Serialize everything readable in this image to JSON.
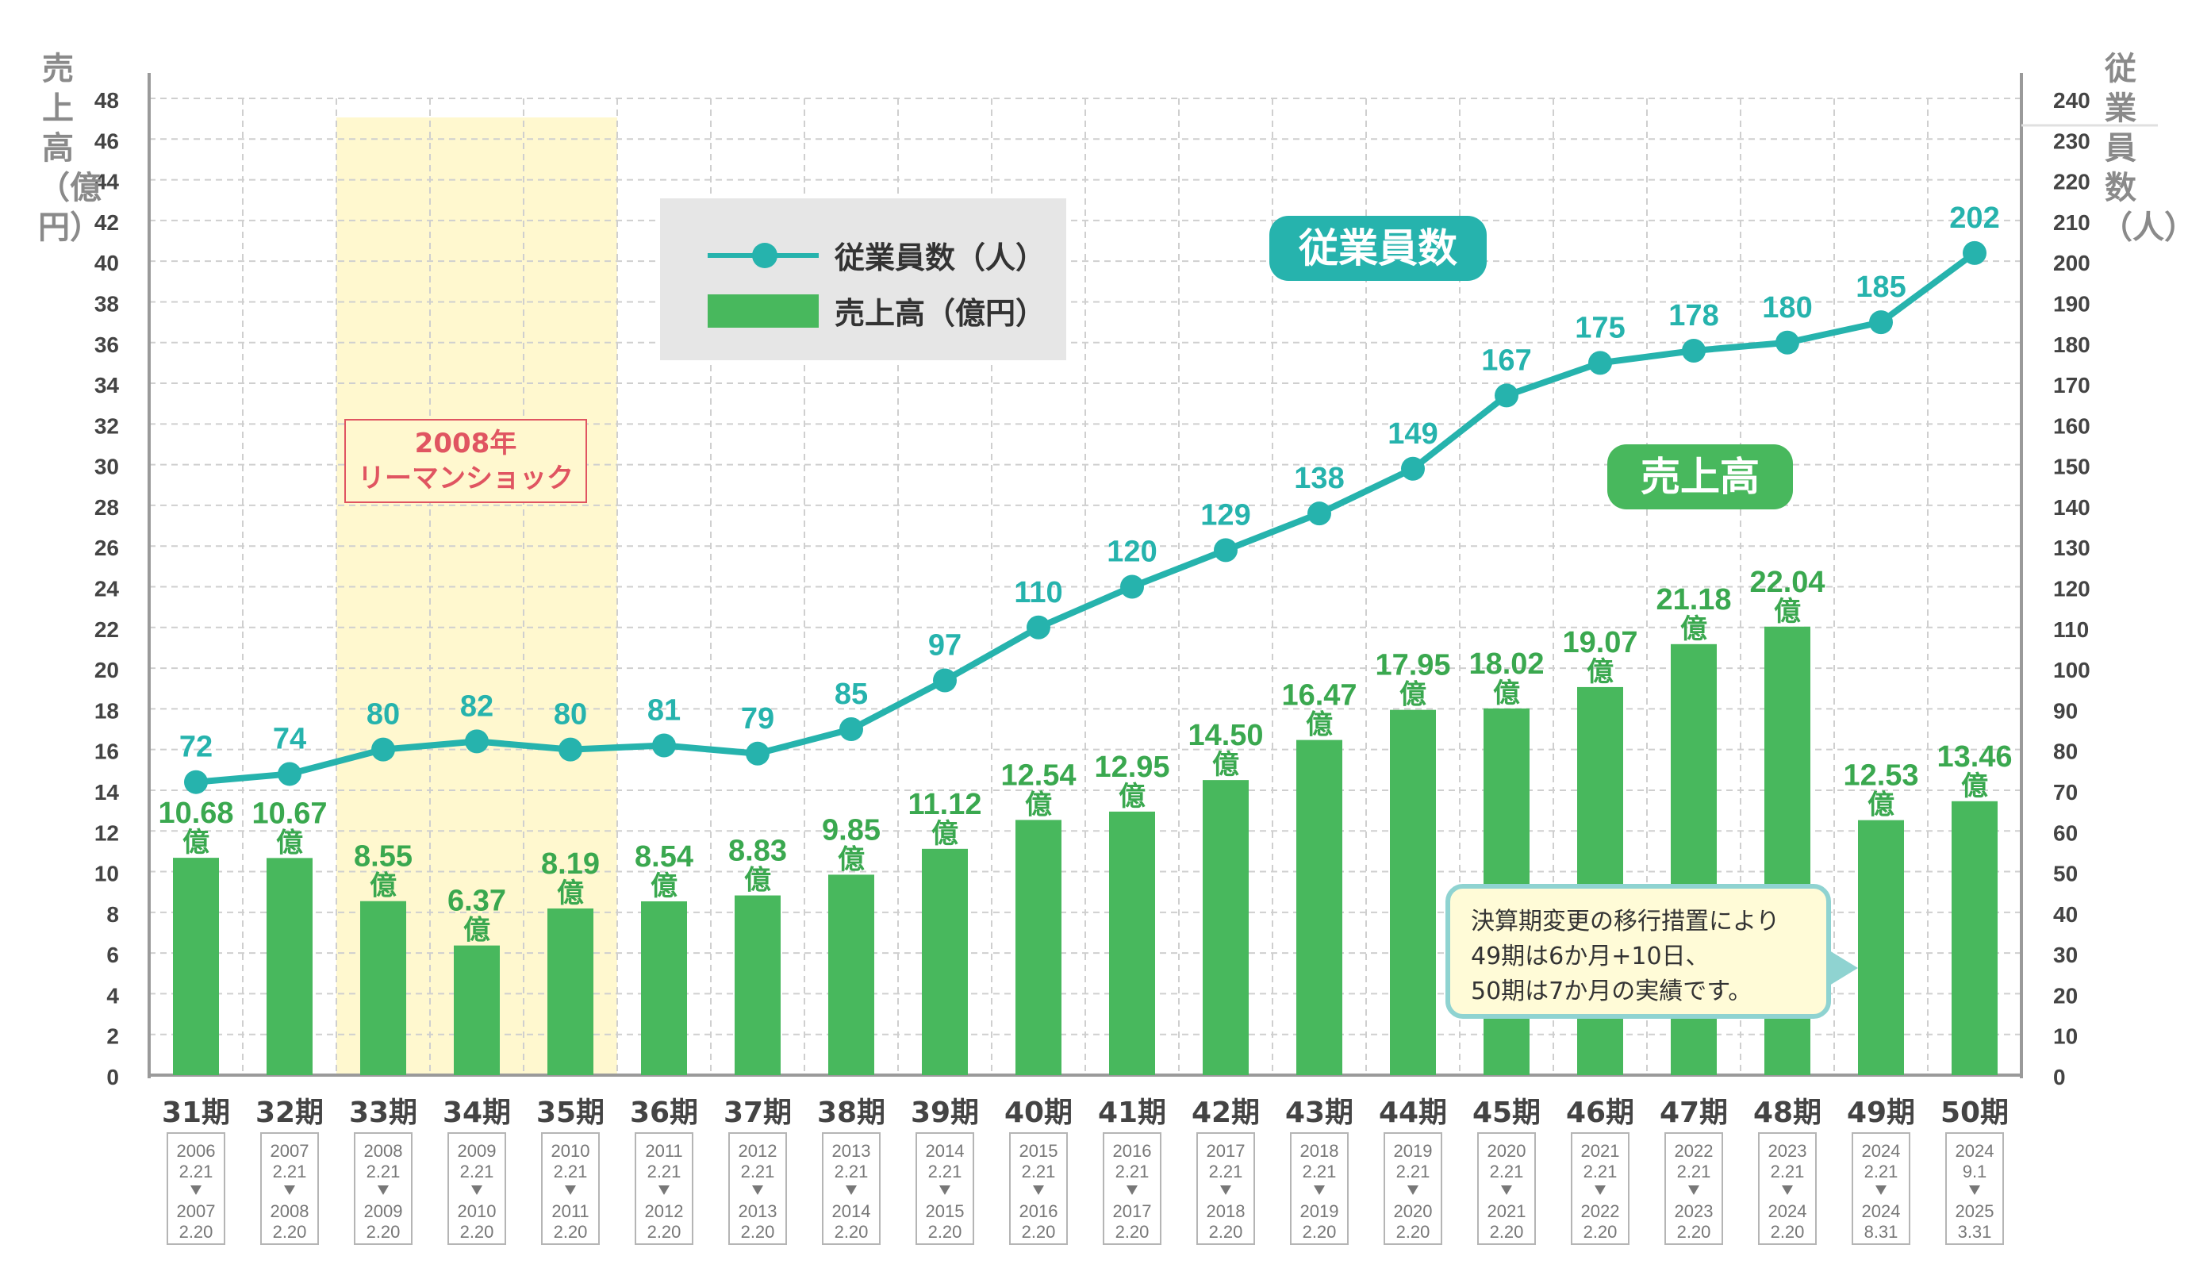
{
  "left_axis_title": "売上高（億円）",
  "right_axis_title": "従業員数（人）",
  "legend": {
    "employees": "従業員数（人）",
    "sales": "売上高（億円）"
  },
  "tags": {
    "employees": "従業員数",
    "sales": "売上高"
  },
  "lehman": {
    "line1": "2008年",
    "line2": "リーマンショック"
  },
  "note": {
    "line1": "決算期変更の移行措置により",
    "line2": "49期は6か月+10日、",
    "line3": "50期は7か月の実績です。"
  },
  "colors": {
    "bar": "#48b85d",
    "line": "#26b3ad",
    "bar_label": "#3aa84f",
    "grid": "#cfcfcf",
    "axis": "#9a9a9a",
    "highlight": "#fff8cf"
  },
  "chart_data": {
    "type": "bar",
    "categories": [
      "31期",
      "32期",
      "33期",
      "34期",
      "35期",
      "36期",
      "37期",
      "38期",
      "39期",
      "40期",
      "41期",
      "42期",
      "43期",
      "44期",
      "45期",
      "46期",
      "47期",
      "48期",
      "49期",
      "50期"
    ],
    "periods": [
      [
        "2006",
        "2.21",
        "2007",
        "2.20"
      ],
      [
        "2007",
        "2.21",
        "2008",
        "2.20"
      ],
      [
        "2008",
        "2.21",
        "2009",
        "2.20"
      ],
      [
        "2009",
        "2.21",
        "2010",
        "2.20"
      ],
      [
        "2010",
        "2.21",
        "2011",
        "2.20"
      ],
      [
        "2011",
        "2.21",
        "2012",
        "2.20"
      ],
      [
        "2012",
        "2.21",
        "2013",
        "2.20"
      ],
      [
        "2013",
        "2.21",
        "2014",
        "2.20"
      ],
      [
        "2014",
        "2.21",
        "2015",
        "2.20"
      ],
      [
        "2015",
        "2.21",
        "2016",
        "2.20"
      ],
      [
        "2016",
        "2.21",
        "2017",
        "2.20"
      ],
      [
        "2017",
        "2.21",
        "2018",
        "2.20"
      ],
      [
        "2018",
        "2.21",
        "2019",
        "2.20"
      ],
      [
        "2019",
        "2.21",
        "2020",
        "2.20"
      ],
      [
        "2020",
        "2.21",
        "2021",
        "2.20"
      ],
      [
        "2021",
        "2.21",
        "2022",
        "2.20"
      ],
      [
        "2022",
        "2.21",
        "2023",
        "2.20"
      ],
      [
        "2023",
        "2.21",
        "2024",
        "2.20"
      ],
      [
        "2024",
        "2.21",
        "2024",
        "8.31"
      ],
      [
        "2024",
        "9.1",
        "2025",
        "3.31"
      ]
    ],
    "series": [
      {
        "name": "売上高（億円）",
        "type": "bar",
        "axis": "left",
        "values": [
          10.68,
          10.67,
          8.55,
          6.37,
          8.19,
          8.54,
          8.83,
          9.85,
          11.12,
          12.54,
          12.95,
          14.5,
          16.47,
          17.95,
          18.02,
          19.07,
          21.18,
          22.04,
          12.53,
          13.46
        ],
        "labels": [
          "10.68",
          "10.67",
          "8.55",
          "6.37",
          "8.19",
          "8.54",
          "8.83",
          "9.85",
          "11.12",
          "12.54",
          "12.95",
          "14.50",
          "16.47",
          "17.95",
          "18.02",
          "19.07",
          "21.18",
          "22.04",
          "12.53",
          "13.46"
        ],
        "unit": "億"
      },
      {
        "name": "従業員数（人）",
        "type": "line",
        "axis": "right",
        "values": [
          72,
          74,
          80,
          82,
          80,
          81,
          79,
          85,
          97,
          110,
          120,
          129,
          138,
          149,
          167,
          175,
          178,
          180,
          185,
          202
        ]
      }
    ],
    "left_axis": {
      "range": [
        0,
        48
      ],
      "ticks": [
        "0",
        "2",
        "4",
        "6",
        "8",
        "10",
        "12",
        "14",
        "16",
        "18",
        "20",
        "22",
        "24",
        "26",
        "28",
        "30",
        "32",
        "34",
        "36",
        "38",
        "40",
        "42",
        "44",
        "46",
        "48"
      ]
    },
    "right_axis": {
      "range": [
        0,
        240
      ],
      "ticks": [
        "0",
        "10",
        "20",
        "30",
        "40",
        "50",
        "60",
        "70",
        "80",
        "90",
        "100",
        "110",
        "120",
        "130",
        "140",
        "150",
        "160",
        "170",
        "180",
        "190",
        "200",
        "210",
        "220",
        "230",
        "240"
      ]
    },
    "highlight_categories": [
      "33期",
      "35期"
    ],
    "grid": true
  }
}
